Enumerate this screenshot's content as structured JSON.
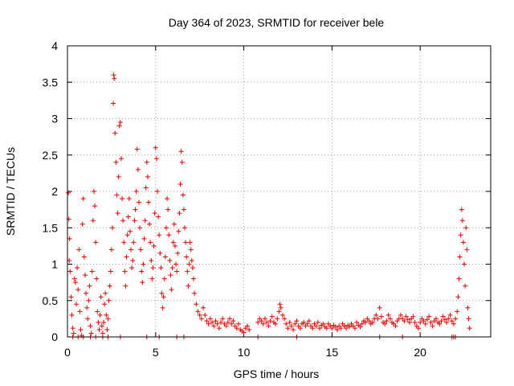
{
  "chart_data": {
    "type": "scatter",
    "title": "Day 364 of 2023, SRMTID for receiver bele",
    "xlabel": "GPS time / hours",
    "ylabel": "SRMTID / TECUs",
    "xlim": [
      0,
      24
    ],
    "ylim": [
      0,
      4
    ],
    "xticks": [
      0,
      5,
      10,
      15,
      20
    ],
    "xtick_labels": [
      "0",
      "5",
      "10",
      "15",
      "20"
    ],
    "yticks": [
      0,
      0.5,
      1,
      1.5,
      2,
      2.5,
      3,
      3.5,
      4
    ],
    "ytick_labels": [
      "0",
      "0.5",
      "1",
      "1.5",
      "2",
      "2.5",
      "3",
      "3.5",
      "4"
    ],
    "grid": true,
    "marker": "+",
    "color": "#e00000",
    "series": [
      {
        "name": "SRMTID",
        "points": [
          [
            0.05,
            1.98
          ],
          [
            0.08,
            1.62
          ],
          [
            0.1,
            1.05
          ],
          [
            0.12,
            1.35
          ],
          [
            0.15,
            0.9
          ],
          [
            0.2,
            0.55
          ],
          [
            0.25,
            0.3
          ],
          [
            0.3,
            0.12
          ],
          [
            0.35,
            0.05
          ],
          [
            0.4,
            0.8
          ],
          [
            0.45,
            0.75
          ],
          [
            0.5,
            0.45
          ],
          [
            0.55,
            0.95
          ],
          [
            0.6,
            0.65
          ],
          [
            0.65,
            1.2
          ],
          [
            0.7,
            0.35
          ],
          [
            0.75,
            0.1
          ],
          [
            0.8,
            0.02
          ],
          [
            0.85,
            1.55
          ],
          [
            0.9,
            1.9
          ],
          [
            0.95,
            1.1
          ],
          [
            1.0,
            0.85
          ],
          [
            1.05,
            0.6
          ],
          [
            1.1,
            0.4
          ],
          [
            1.15,
            0.25
          ],
          [
            1.2,
            0.5
          ],
          [
            1.25,
            0.7
          ],
          [
            1.3,
            0.15
          ],
          [
            1.35,
            0.05
          ],
          [
            1.4,
            0.9
          ],
          [
            1.45,
            1.6
          ],
          [
            1.5,
            2.0
          ],
          [
            1.55,
            1.8
          ],
          [
            1.6,
            1.3
          ],
          [
            1.65,
            0.8
          ],
          [
            1.7,
            0.35
          ],
          [
            1.75,
            0.2
          ],
          [
            1.8,
            0.1
          ],
          [
            1.85,
            0.3
          ],
          [
            1.9,
            0.55
          ],
          [
            1.95,
            0.15
          ],
          [
            2.0,
            0.05
          ],
          [
            2.05,
            0.2
          ],
          [
            2.1,
            0.45
          ],
          [
            2.15,
            0.6
          ],
          [
            2.2,
            0.3
          ],
          [
            2.25,
            0.1
          ],
          [
            2.3,
            0.25
          ],
          [
            2.35,
            0.5
          ],
          [
            2.4,
            0.7
          ],
          [
            2.45,
            0.9
          ],
          [
            2.5,
            1.2
          ],
          [
            2.55,
            1.5
          ],
          [
            2.6,
            3.21
          ],
          [
            2.62,
            3.6
          ],
          [
            2.65,
            3.55
          ],
          [
            2.7,
            2.8
          ],
          [
            2.75,
            2.4
          ],
          [
            2.8,
            1.95
          ],
          [
            2.85,
            1.7
          ],
          [
            2.9,
            2.2
          ],
          [
            2.95,
            2.9
          ],
          [
            3.0,
            2.95
          ],
          [
            3.05,
            2.45
          ],
          [
            3.1,
            1.9
          ],
          [
            3.15,
            1.6
          ],
          [
            3.2,
            1.3
          ],
          [
            3.25,
            0.9
          ],
          [
            3.3,
            0.7
          ],
          [
            3.35,
            1.1
          ],
          [
            3.4,
            1.4
          ],
          [
            3.45,
            1.65
          ],
          [
            3.5,
            1.9
          ],
          [
            3.55,
            1.45
          ],
          [
            3.6,
            1.2
          ],
          [
            3.65,
            0.95
          ],
          [
            3.7,
            1.05
          ],
          [
            3.75,
            1.3
          ],
          [
            3.8,
            1.6
          ],
          [
            3.85,
            1.75
          ],
          [
            3.9,
            2.0
          ],
          [
            3.95,
            2.58
          ],
          [
            4.0,
            2.3
          ],
          [
            4.05,
            1.85
          ],
          [
            4.1,
            1.5
          ],
          [
            4.15,
            1.2
          ],
          [
            4.2,
            0.9
          ],
          [
            4.25,
            0.75
          ],
          [
            4.3,
            1.0
          ],
          [
            4.35,
            1.35
          ],
          [
            4.4,
            1.6
          ],
          [
            4.45,
            2.05
          ],
          [
            4.5,
            2.4
          ],
          [
            4.55,
            2.2
          ],
          [
            4.6,
            1.85
          ],
          [
            4.65,
            1.55
          ],
          [
            4.7,
            1.3
          ],
          [
            4.75,
            1.05
          ],
          [
            4.8,
            0.8
          ],
          [
            4.85,
            0.95
          ],
          [
            4.9,
            1.25
          ],
          [
            4.95,
            1.7
          ],
          [
            5.0,
            2.6
          ],
          [
            5.05,
            2.45
          ],
          [
            5.1,
            2.0
          ],
          [
            5.15,
            1.65
          ],
          [
            5.2,
            1.4
          ],
          [
            5.25,
            1.15
          ],
          [
            5.3,
            0.95
          ],
          [
            5.35,
            0.6
          ],
          [
            5.4,
            0.4
          ],
          [
            5.45,
            0.55
          ],
          [
            5.5,
            0.8
          ],
          [
            5.55,
            1.1
          ],
          [
            5.6,
            1.5
          ],
          [
            5.65,
            1.9
          ],
          [
            5.7,
            1.75
          ],
          [
            5.75,
            1.4
          ],
          [
            5.8,
            1.05
          ],
          [
            5.85,
            0.85
          ],
          [
            5.9,
            0.65
          ],
          [
            5.95,
            0.95
          ],
          [
            6.0,
            1.3
          ],
          [
            6.05,
            1.55
          ],
          [
            6.1,
            1.25
          ],
          [
            6.15,
            1.0
          ],
          [
            6.2,
            0.9
          ],
          [
            6.25,
            1.15
          ],
          [
            6.3,
            1.45
          ],
          [
            6.35,
            1.7
          ],
          [
            6.4,
            2.1
          ],
          [
            6.45,
            2.55
          ],
          [
            6.5,
            2.4
          ],
          [
            6.55,
            1.95
          ],
          [
            6.6,
            1.75
          ],
          [
            6.65,
            1.5
          ],
          [
            6.7,
            1.3
          ],
          [
            6.75,
            1.1
          ],
          [
            6.8,
            0.9
          ],
          [
            6.85,
            0.7
          ],
          [
            6.9,
            1.0
          ],
          [
            6.95,
            1.3
          ],
          [
            7.0,
            1.2
          ],
          [
            7.05,
            1.05
          ],
          [
            7.1,
            0.95
          ],
          [
            7.15,
            0.8
          ],
          [
            7.2,
            0.6
          ],
          [
            7.3,
            0.45
          ],
          [
            7.4,
            0.35
          ],
          [
            7.5,
            0.3
          ],
          [
            7.6,
            0.25
          ],
          [
            7.7,
            0.4
          ],
          [
            7.8,
            0.3
          ],
          [
            7.9,
            0.22
          ],
          [
            8.0,
            0.18
          ],
          [
            8.1,
            0.25
          ],
          [
            8.2,
            0.2
          ],
          [
            8.3,
            0.15
          ],
          [
            8.4,
            0.22
          ],
          [
            8.5,
            0.18
          ],
          [
            8.6,
            0.12
          ],
          [
            8.7,
            0.2
          ],
          [
            8.8,
            0.25
          ],
          [
            8.9,
            0.18
          ],
          [
            9.0,
            0.15
          ],
          [
            9.1,
            0.2
          ],
          [
            9.2,
            0.25
          ],
          [
            9.3,
            0.18
          ],
          [
            9.4,
            0.22
          ],
          [
            9.5,
            0.15
          ],
          [
            9.6,
            0.12
          ],
          [
            9.7,
            0.18
          ],
          [
            9.8,
            0.1
          ],
          [
            9.9,
            0.08
          ],
          [
            10.0,
            0.06
          ],
          [
            10.1,
            0.12
          ],
          [
            10.2,
            0.15
          ],
          [
            10.3,
            0.1
          ],
          [
            10.8,
            0.2
          ],
          [
            10.9,
            0.25
          ],
          [
            11.0,
            0.22
          ],
          [
            11.1,
            0.18
          ],
          [
            11.2,
            0.25
          ],
          [
            11.3,
            0.2
          ],
          [
            11.4,
            0.15
          ],
          [
            11.5,
            0.22
          ],
          [
            11.6,
            0.28
          ],
          [
            11.7,
            0.2
          ],
          [
            11.8,
            0.18
          ],
          [
            11.9,
            0.25
          ],
          [
            12.0,
            0.35
          ],
          [
            12.05,
            0.45
          ],
          [
            12.1,
            0.4
          ],
          [
            12.2,
            0.3
          ],
          [
            12.3,
            0.25
          ],
          [
            12.4,
            0.18
          ],
          [
            12.5,
            0.12
          ],
          [
            12.6,
            0.2
          ],
          [
            12.7,
            0.15
          ],
          [
            12.8,
            0.1
          ],
          [
            12.9,
            0.18
          ],
          [
            13.0,
            0.22
          ],
          [
            13.1,
            0.15
          ],
          [
            13.2,
            0.12
          ],
          [
            13.3,
            0.18
          ],
          [
            13.4,
            0.2
          ],
          [
            13.5,
            0.15
          ],
          [
            13.6,
            0.18
          ],
          [
            13.7,
            0.22
          ],
          [
            13.8,
            0.15
          ],
          [
            13.9,
            0.12
          ],
          [
            14.0,
            0.18
          ],
          [
            14.1,
            0.15
          ],
          [
            14.2,
            0.2
          ],
          [
            14.3,
            0.12
          ],
          [
            14.4,
            0.16
          ],
          [
            14.5,
            0.18
          ],
          [
            14.6,
            0.14
          ],
          [
            14.7,
            0.12
          ],
          [
            14.8,
            0.18
          ],
          [
            14.9,
            0.15
          ],
          [
            15.0,
            0.12
          ],
          [
            15.1,
            0.16
          ],
          [
            15.2,
            0.14
          ],
          [
            15.3,
            0.1
          ],
          [
            15.4,
            0.15
          ],
          [
            15.5,
            0.12
          ],
          [
            15.6,
            0.18
          ],
          [
            15.7,
            0.15
          ],
          [
            15.8,
            0.12
          ],
          [
            15.9,
            0.16
          ],
          [
            16.0,
            0.14
          ],
          [
            16.1,
            0.18
          ],
          [
            16.2,
            0.15
          ],
          [
            16.3,
            0.12
          ],
          [
            16.4,
            0.2
          ],
          [
            16.5,
            0.16
          ],
          [
            16.6,
            0.14
          ],
          [
            16.7,
            0.18
          ],
          [
            16.8,
            0.22
          ],
          [
            16.9,
            0.2
          ],
          [
            17.0,
            0.25
          ],
          [
            17.1,
            0.22
          ],
          [
            17.2,
            0.18
          ],
          [
            17.3,
            0.2
          ],
          [
            17.4,
            0.25
          ],
          [
            17.5,
            0.3
          ],
          [
            17.6,
            0.25
          ],
          [
            17.7,
            0.4
          ],
          [
            17.8,
            0.28
          ],
          [
            17.9,
            0.2
          ],
          [
            18.0,
            0.18
          ],
          [
            18.1,
            0.22
          ],
          [
            18.2,
            0.3
          ],
          [
            18.3,
            0.25
          ],
          [
            18.4,
            0.2
          ],
          [
            18.5,
            0.18
          ],
          [
            18.6,
            0.15
          ],
          [
            18.7,
            0.22
          ],
          [
            18.8,
            0.25
          ],
          [
            18.9,
            0.3
          ],
          [
            19.0,
            0.25
          ],
          [
            19.1,
            0.22
          ],
          [
            19.2,
            0.28
          ],
          [
            19.3,
            0.24
          ],
          [
            19.4,
            0.2
          ],
          [
            19.5,
            0.25
          ],
          [
            19.6,
            0.28
          ],
          [
            19.7,
            0.2
          ],
          [
            19.8,
            0.15
          ],
          [
            19.9,
            0.12
          ],
          [
            20.0,
            0.2
          ],
          [
            20.1,
            0.25
          ],
          [
            20.2,
            0.22
          ],
          [
            20.3,
            0.18
          ],
          [
            20.4,
            0.24
          ],
          [
            20.5,
            0.28
          ],
          [
            20.6,
            0.2
          ],
          [
            20.7,
            0.15
          ],
          [
            20.8,
            0.22
          ],
          [
            20.9,
            0.25
          ],
          [
            21.0,
            0.2
          ],
          [
            21.1,
            0.18
          ],
          [
            21.2,
            0.22
          ],
          [
            21.3,
            0.28
          ],
          [
            21.4,
            0.24
          ],
          [
            21.5,
            0.2
          ],
          [
            21.6,
            0.25
          ],
          [
            21.7,
            0.3
          ],
          [
            21.8,
            0.22
          ],
          [
            21.9,
            0.18
          ],
          [
            22.0,
            0.25
          ],
          [
            22.1,
            0.35
          ],
          [
            22.15,
            0.55
          ],
          [
            22.2,
            0.8
          ],
          [
            22.25,
            1.1
          ],
          [
            22.3,
            1.4
          ],
          [
            22.35,
            1.75
          ],
          [
            22.4,
            1.6
          ],
          [
            22.45,
            1.3
          ],
          [
            22.5,
            1.0
          ],
          [
            22.55,
            0.7
          ],
          [
            22.6,
            1.5
          ],
          [
            22.65,
            1.2
          ],
          [
            22.7,
            0.4
          ],
          [
            22.75,
            0.25
          ],
          [
            22.8,
            0.12
          ]
        ]
      }
    ],
    "zero_markers_x": [
      0.3,
      0.6,
      0.9,
      1.3,
      1.6,
      2.0,
      2.3,
      3.0,
      4.5,
      5.2,
      6.2,
      6.6,
      10.8,
      13.0,
      17.7,
      19.0,
      21.8,
      21.9,
      22.0
    ]
  }
}
